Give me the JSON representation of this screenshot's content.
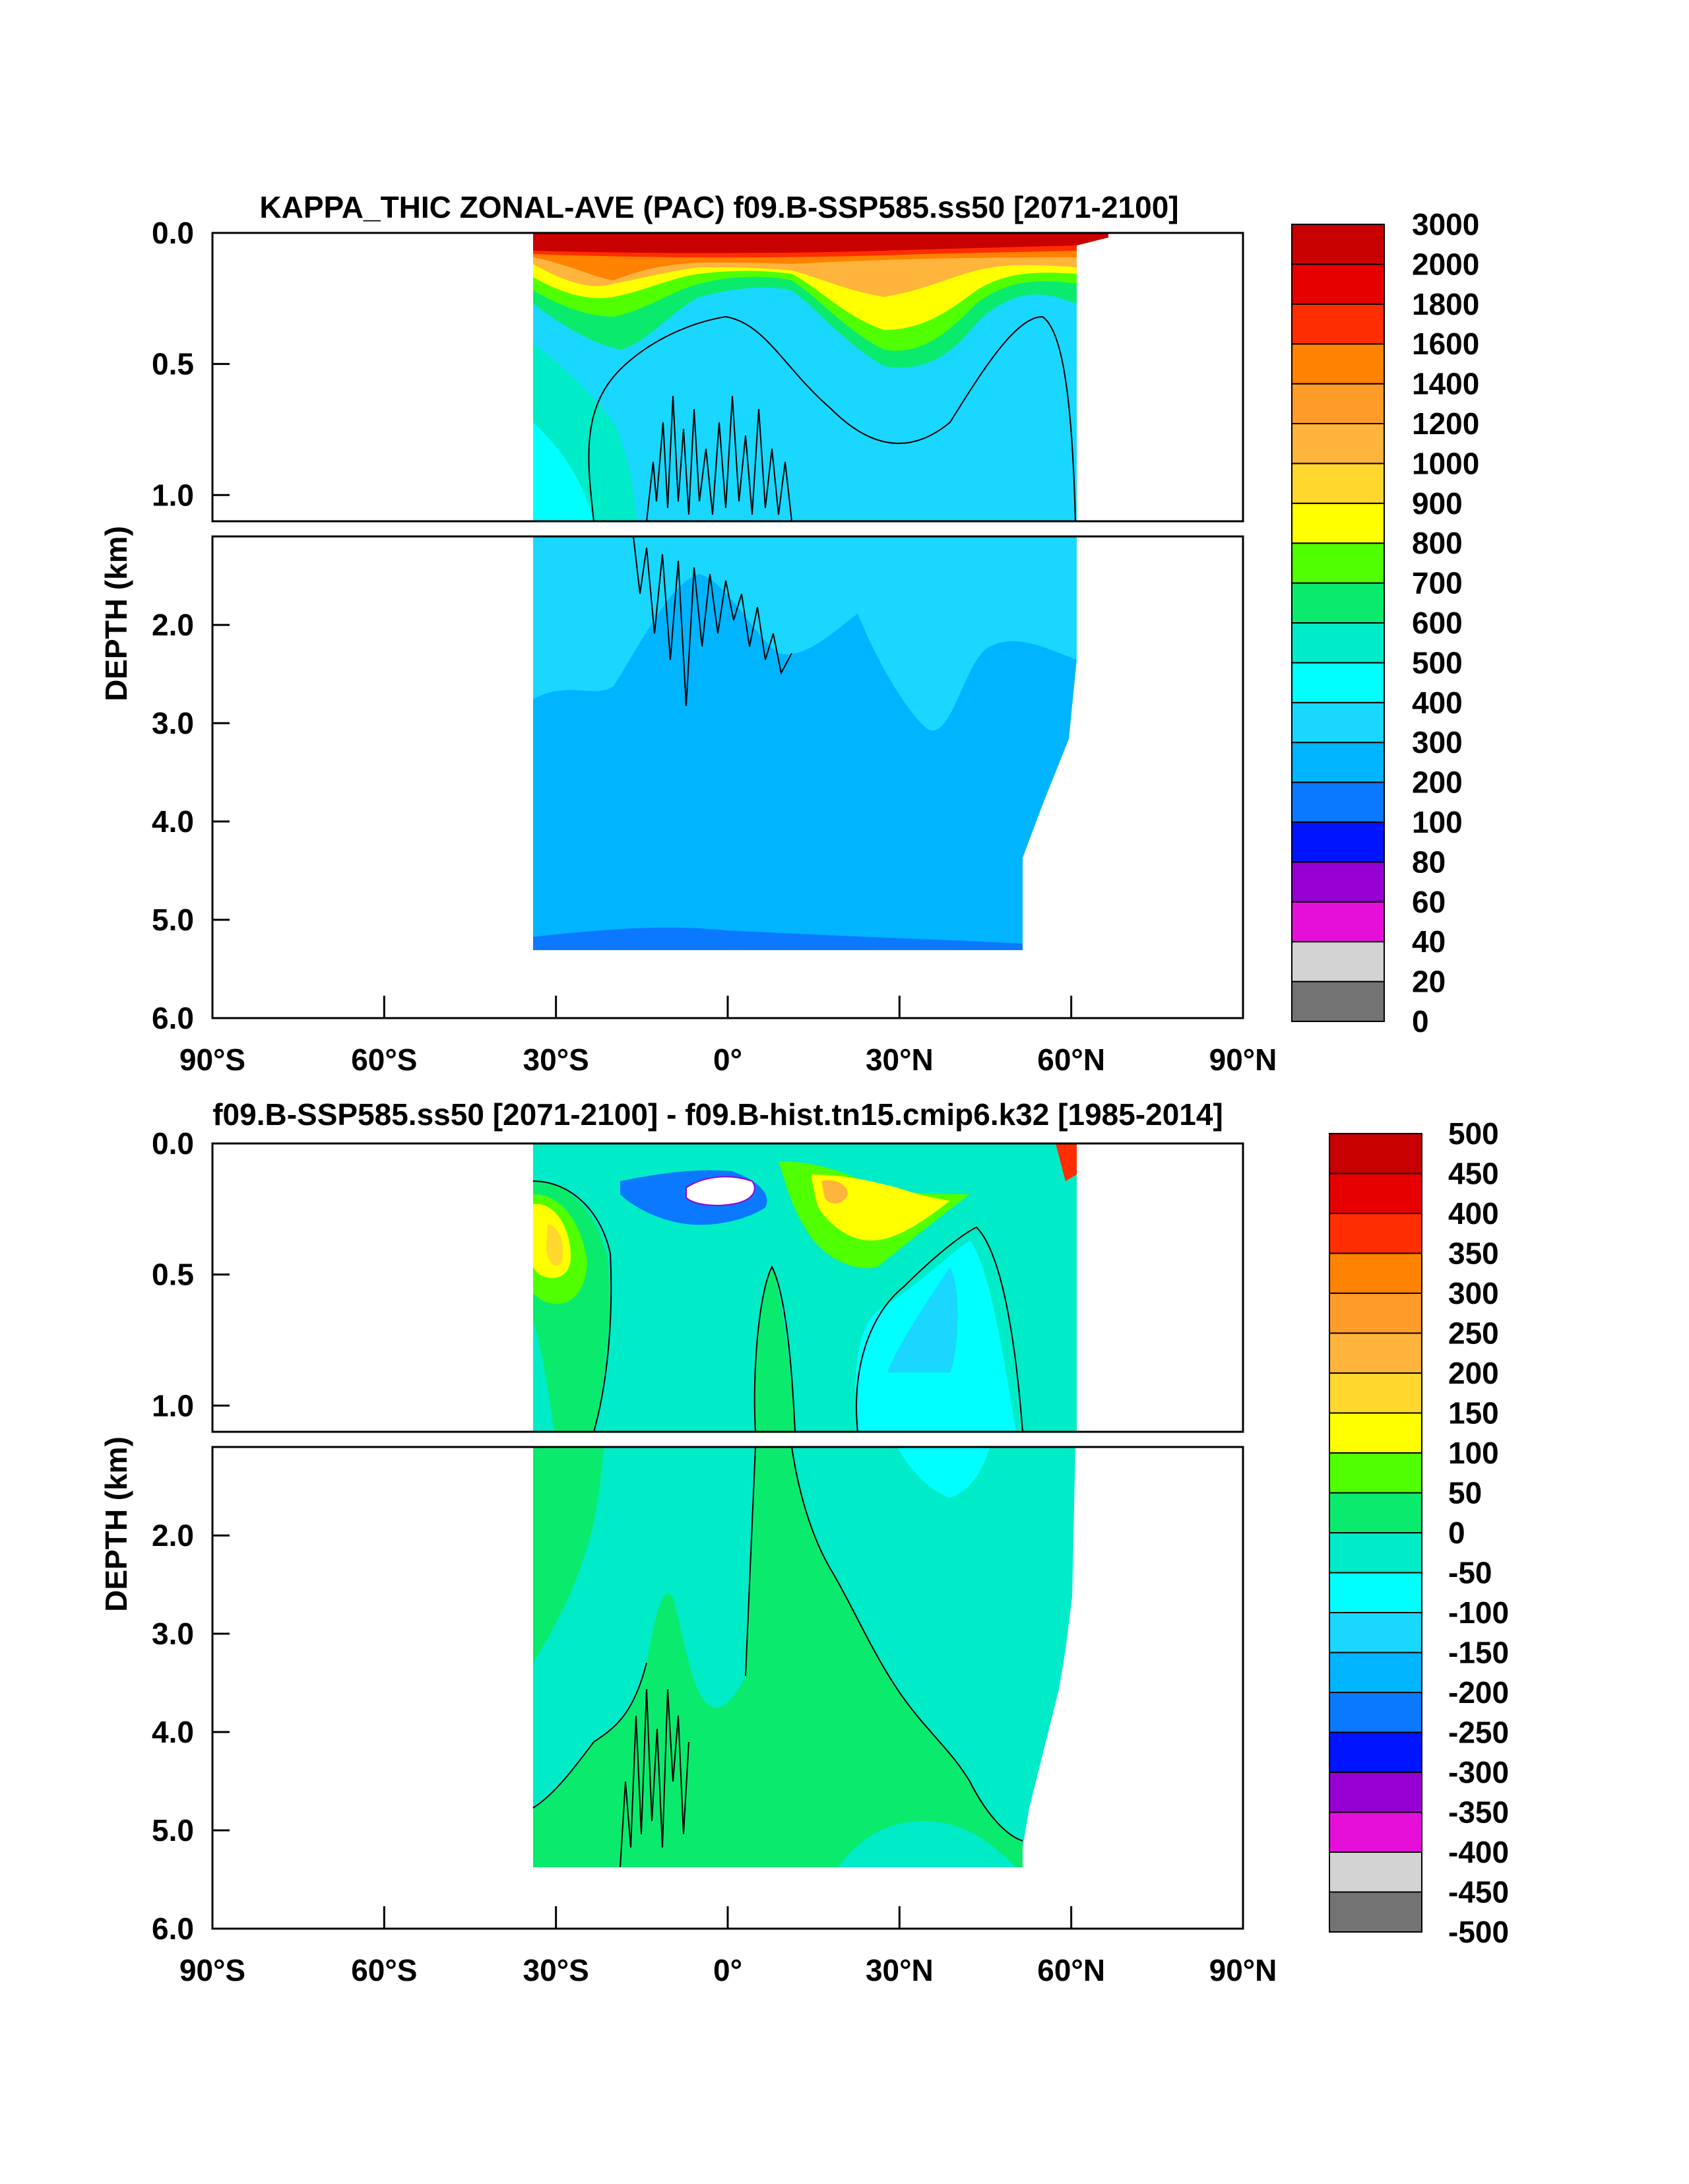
{
  "chart_data": [
    {
      "type": "contour",
      "title": "KAPPA_THIC ZONAL-AVE (PAC) f09.B-SSP585.ss50 [2071-2100]",
      "ylabel": "DEPTH (km)",
      "xlim": [
        -90,
        90
      ],
      "ylim_upper_panel": [
        0.0,
        1.1
      ],
      "ylim_lower_panel": [
        1.1,
        6.0
      ],
      "x_ticks": [
        "90°S",
        "60°S",
        "30°S",
        "0°",
        "30°N",
        "60°N",
        "90°N"
      ],
      "y_ticks_upper": [
        "0.0",
        "0.5",
        "1.0"
      ],
      "y_ticks_lower": [
        "2.0",
        "3.0",
        "4.0",
        "5.0",
        "6.0"
      ],
      "data_extent_lat": [
        -34,
        67
      ],
      "colorbar_levels": [
        "0",
        "20",
        "40",
        "60",
        "80",
        "100",
        "200",
        "300",
        "400",
        "500",
        "600",
        "700",
        "800",
        "900",
        "1000",
        "1200",
        "1400",
        "1600",
        "1800",
        "2000",
        "3000"
      ],
      "colorbar_colors": [
        "#737373",
        "#d3d3d3",
        "#e60fd9",
        "#9600d2",
        "#0014ff",
        "#0a78ff",
        "#00b4ff",
        "#19d7ff",
        "#00ffff",
        "#00ebc8",
        "#0aeb6e",
        "#50ff00",
        "#ffff00",
        "#ffd72d",
        "#ffb43c",
        "#ff9b28",
        "#ff8200",
        "#ff2d00",
        "#e60000",
        "#c80000"
      ]
    },
    {
      "type": "contour",
      "title": "f09.B-SSP585.ss50 [2071-2100] - f09.B-hist.tn15.cmip6.k32 [1985-2014]",
      "ylabel": "DEPTH (km)",
      "xlim": [
        -90,
        90
      ],
      "ylim_upper_panel": [
        0.0,
        1.1
      ],
      "ylim_lower_panel": [
        1.1,
        6.0
      ],
      "x_ticks": [
        "90°S",
        "60°S",
        "30°S",
        "0°",
        "30°N",
        "60°N",
        "90°N"
      ],
      "y_ticks_upper": [
        "0.0",
        "0.5",
        "1.0"
      ],
      "y_ticks_lower": [
        "2.0",
        "3.0",
        "4.0",
        "5.0",
        "6.0"
      ],
      "data_extent_lat": [
        -34,
        64
      ],
      "colorbar_levels": [
        "-500",
        "-450",
        "-400",
        "-350",
        "-300",
        "-250",
        "-200",
        "-150",
        "-100",
        "-50",
        "0",
        "50",
        "100",
        "150",
        "200",
        "250",
        "300",
        "350",
        "400",
        "450",
        "500"
      ],
      "colorbar_colors": [
        "#737373",
        "#d3d3d3",
        "#e60fd9",
        "#9600d2",
        "#0014ff",
        "#0a78ff",
        "#00b4ff",
        "#19d7ff",
        "#00ffff",
        "#00ebc8",
        "#0aeb6e",
        "#50ff00",
        "#ffff00",
        "#ffd72d",
        "#ffb43c",
        "#ff9b28",
        "#ff8200",
        "#ff2d00",
        "#e60000",
        "#c80000"
      ]
    }
  ]
}
